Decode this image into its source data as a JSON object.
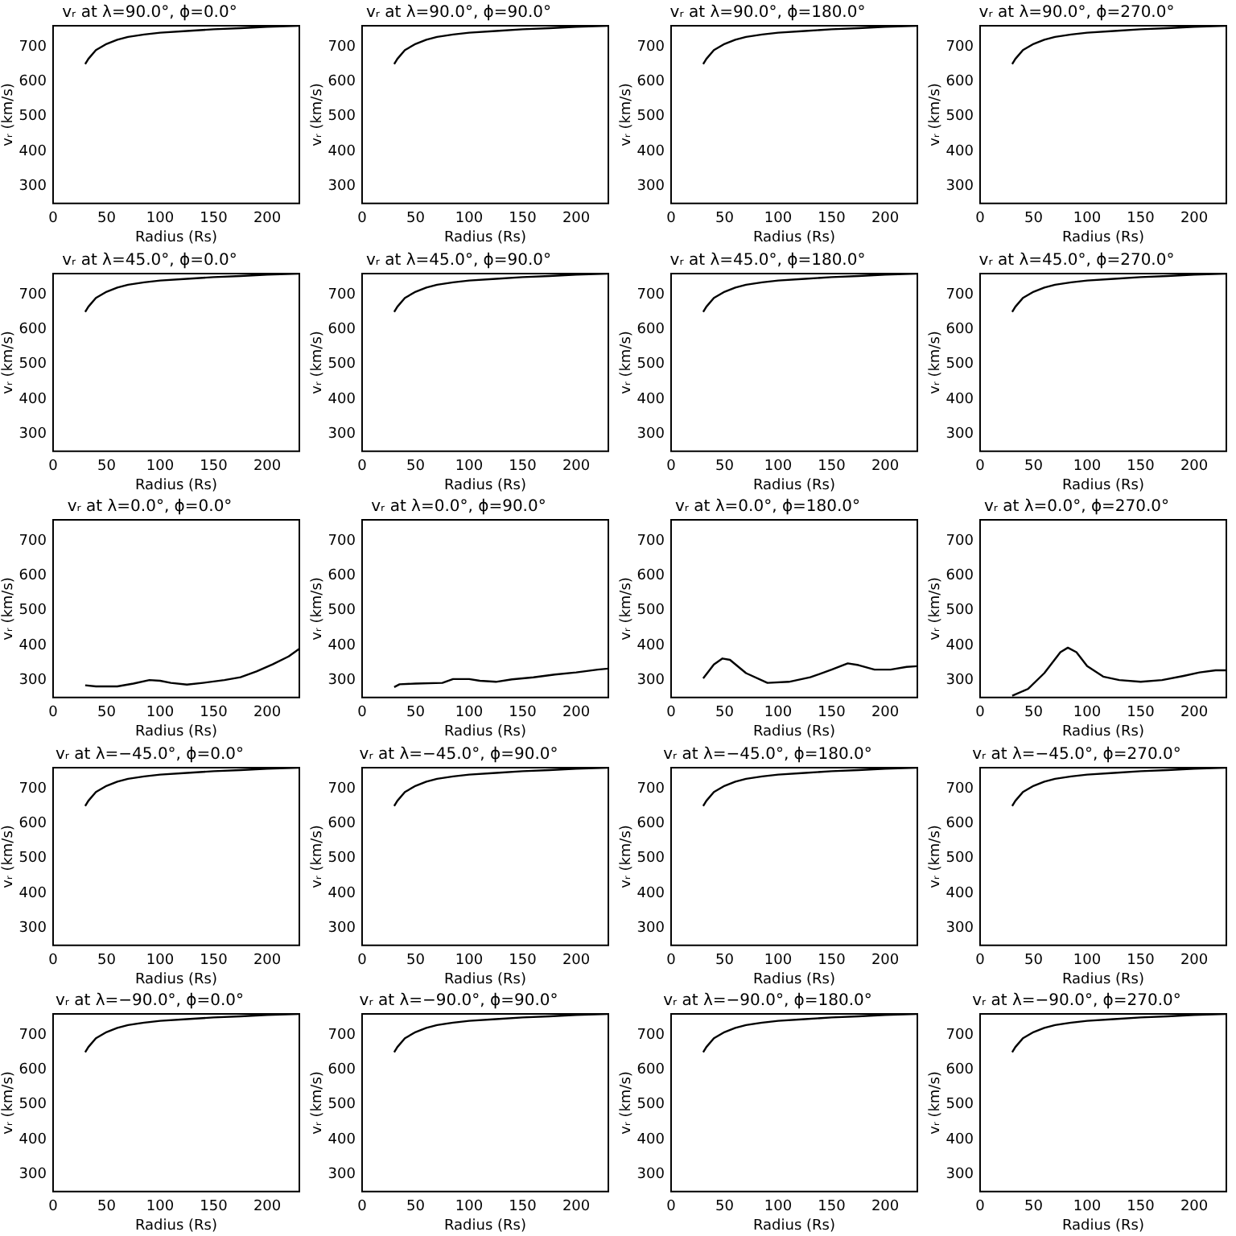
{
  "chart_data": [
    {
      "type": "line",
      "title": "vᵣ at λ=90.0°, ϕ=0.0°",
      "xlabel": "Radius (Rs)",
      "ylabel": "vᵣ (km/s)",
      "color": "#000000",
      "x": [
        30,
        33,
        40,
        50,
        60,
        70,
        85,
        100,
        125,
        150,
        175,
        200,
        230
      ],
      "values": [
        650,
        665,
        690,
        708,
        720,
        728,
        735,
        740,
        745,
        750,
        753,
        757,
        760
      ],
      "xlim": [
        0,
        230
      ],
      "ylim": [
        250,
        760
      ],
      "xticks": [
        0,
        50,
        100,
        150,
        200
      ],
      "yticks": [
        300,
        400,
        500,
        600,
        700
      ]
    },
    {
      "type": "line",
      "title": "vᵣ at λ=90.0°, ϕ=90.0°",
      "xlabel": "Radius (Rs)",
      "ylabel": "vᵣ (km/s)",
      "color": "#000000",
      "x": [
        30,
        33,
        40,
        50,
        60,
        70,
        85,
        100,
        125,
        150,
        175,
        200,
        230
      ],
      "values": [
        650,
        665,
        690,
        708,
        720,
        728,
        735,
        740,
        745,
        750,
        753,
        757,
        760
      ],
      "xlim": [
        0,
        230
      ],
      "ylim": [
        250,
        760
      ],
      "xticks": [
        0,
        50,
        100,
        150,
        200
      ],
      "yticks": [
        300,
        400,
        500,
        600,
        700
      ]
    },
    {
      "type": "line",
      "title": "vᵣ at λ=90.0°, ϕ=180.0°",
      "xlabel": "Radius (Rs)",
      "ylabel": "vᵣ (km/s)",
      "color": "#000000",
      "x": [
        30,
        33,
        40,
        50,
        60,
        70,
        85,
        100,
        125,
        150,
        175,
        200,
        230
      ],
      "values": [
        650,
        665,
        690,
        708,
        720,
        728,
        735,
        740,
        745,
        750,
        753,
        757,
        760
      ],
      "xlim": [
        0,
        230
      ],
      "ylim": [
        250,
        760
      ],
      "xticks": [
        0,
        50,
        100,
        150,
        200
      ],
      "yticks": [
        300,
        400,
        500,
        600,
        700
      ]
    },
    {
      "type": "line",
      "title": "vᵣ at λ=90.0°, ϕ=270.0°",
      "xlabel": "Radius (Rs)",
      "ylabel": "vᵣ (km/s)",
      "color": "#000000",
      "x": [
        30,
        33,
        40,
        50,
        60,
        70,
        85,
        100,
        125,
        150,
        175,
        200,
        230
      ],
      "values": [
        650,
        665,
        690,
        708,
        720,
        728,
        735,
        740,
        745,
        750,
        753,
        757,
        760
      ],
      "xlim": [
        0,
        230
      ],
      "ylim": [
        250,
        760
      ],
      "xticks": [
        0,
        50,
        100,
        150,
        200
      ],
      "yticks": [
        300,
        400,
        500,
        600,
        700
      ]
    },
    {
      "type": "line",
      "title": "vᵣ at λ=45.0°, ϕ=0.0°",
      "xlabel": "Radius (Rs)",
      "ylabel": "vᵣ (km/s)",
      "color": "#000000",
      "x": [
        30,
        33,
        40,
        50,
        60,
        70,
        85,
        100,
        125,
        150,
        175,
        200,
        230
      ],
      "values": [
        650,
        665,
        690,
        708,
        720,
        728,
        735,
        740,
        745,
        750,
        753,
        757,
        760
      ],
      "xlim": [
        0,
        230
      ],
      "ylim": [
        250,
        760
      ],
      "xticks": [
        0,
        50,
        100,
        150,
        200
      ],
      "yticks": [
        300,
        400,
        500,
        600,
        700
      ]
    },
    {
      "type": "line",
      "title": "vᵣ at λ=45.0°, ϕ=90.0°",
      "xlabel": "Radius (Rs)",
      "ylabel": "vᵣ (km/s)",
      "color": "#000000",
      "x": [
        30,
        33,
        40,
        50,
        60,
        70,
        85,
        100,
        125,
        150,
        175,
        200,
        230
      ],
      "values": [
        650,
        665,
        690,
        708,
        720,
        728,
        735,
        740,
        745,
        750,
        753,
        757,
        760
      ],
      "xlim": [
        0,
        230
      ],
      "ylim": [
        250,
        760
      ],
      "xticks": [
        0,
        50,
        100,
        150,
        200
      ],
      "yticks": [
        300,
        400,
        500,
        600,
        700
      ]
    },
    {
      "type": "line",
      "title": "vᵣ at λ=45.0°, ϕ=180.0°",
      "xlabel": "Radius (Rs)",
      "ylabel": "vᵣ (km/s)",
      "color": "#000000",
      "x": [
        30,
        33,
        40,
        50,
        60,
        70,
        85,
        100,
        125,
        150,
        175,
        200,
        230
      ],
      "values": [
        650,
        665,
        690,
        708,
        720,
        728,
        735,
        740,
        745,
        750,
        753,
        757,
        760
      ],
      "xlim": [
        0,
        230
      ],
      "ylim": [
        250,
        760
      ],
      "xticks": [
        0,
        50,
        100,
        150,
        200
      ],
      "yticks": [
        300,
        400,
        500,
        600,
        700
      ]
    },
    {
      "type": "line",
      "title": "vᵣ at λ=45.0°, ϕ=270.0°",
      "xlabel": "Radius (Rs)",
      "ylabel": "vᵣ (km/s)",
      "color": "#000000",
      "x": [
        30,
        33,
        40,
        50,
        60,
        70,
        85,
        100,
        125,
        150,
        175,
        200,
        230
      ],
      "values": [
        650,
        665,
        690,
        708,
        720,
        728,
        735,
        740,
        745,
        750,
        753,
        757,
        760
      ],
      "xlim": [
        0,
        230
      ],
      "ylim": [
        250,
        760
      ],
      "xticks": [
        0,
        50,
        100,
        150,
        200
      ],
      "yticks": [
        300,
        400,
        500,
        600,
        700
      ]
    },
    {
      "type": "line",
      "title": "vᵣ at λ=0.0°, ϕ=0.0°",
      "xlabel": "Radius (Rs)",
      "ylabel": "vᵣ (km/s)",
      "color": "#000000",
      "x": [
        30,
        40,
        60,
        75,
        90,
        100,
        110,
        125,
        140,
        160,
        175,
        190,
        205,
        220,
        230
      ],
      "values": [
        285,
        282,
        282,
        290,
        300,
        298,
        292,
        287,
        292,
        300,
        308,
        325,
        345,
        368,
        390
      ],
      "xlim": [
        0,
        230
      ],
      "ylim": [
        250,
        760
      ],
      "xticks": [
        0,
        50,
        100,
        150,
        200
      ],
      "yticks": [
        300,
        400,
        500,
        600,
        700
      ]
    },
    {
      "type": "line",
      "title": "vᵣ at λ=0.0°, ϕ=90.0°",
      "xlabel": "Radius (Rs)",
      "ylabel": "vᵣ (km/s)",
      "color": "#000000",
      "x": [
        30,
        35,
        50,
        75,
        85,
        100,
        110,
        125,
        140,
        160,
        180,
        200,
        220,
        230
      ],
      "values": [
        280,
        288,
        290,
        292,
        303,
        303,
        298,
        295,
        302,
        308,
        316,
        322,
        330,
        333
      ],
      "xlim": [
        0,
        230
      ],
      "ylim": [
        250,
        760
      ],
      "xticks": [
        0,
        50,
        100,
        150,
        200
      ],
      "yticks": [
        300,
        400,
        500,
        600,
        700
      ]
    },
    {
      "type": "line",
      "title": "vᵣ at λ=0.0°, ϕ=180.0°",
      "xlabel": "Radius (Rs)",
      "ylabel": "vᵣ (km/s)",
      "color": "#000000",
      "x": [
        30,
        40,
        48,
        55,
        70,
        90,
        110,
        130,
        150,
        165,
        175,
        190,
        205,
        220,
        230
      ],
      "values": [
        305,
        345,
        362,
        358,
        320,
        292,
        295,
        308,
        330,
        348,
        343,
        330,
        330,
        338,
        340
      ],
      "xlim": [
        0,
        230
      ],
      "ylim": [
        250,
        760
      ],
      "xticks": [
        0,
        50,
        100,
        150,
        200
      ],
      "yticks": [
        300,
        400,
        500,
        600,
        700
      ]
    },
    {
      "type": "line",
      "title": "vᵣ at λ=0.0°, ϕ=270.0°",
      "xlabel": "Radius (Rs)",
      "ylabel": "vᵣ (km/s)",
      "color": "#000000",
      "x": [
        30,
        45,
        60,
        75,
        82,
        90,
        100,
        115,
        130,
        150,
        170,
        190,
        205,
        220,
        230
      ],
      "values": [
        255,
        275,
        320,
        380,
        393,
        380,
        340,
        310,
        300,
        295,
        300,
        312,
        322,
        328,
        328
      ],
      "xlim": [
        0,
        230
      ],
      "ylim": [
        250,
        760
      ],
      "xticks": [
        0,
        50,
        100,
        150,
        200
      ],
      "yticks": [
        300,
        400,
        500,
        600,
        700
      ]
    },
    {
      "type": "line",
      "title": "vᵣ at λ=−45.0°, ϕ=0.0°",
      "xlabel": "Radius (Rs)",
      "ylabel": "vᵣ (km/s)",
      "color": "#000000",
      "x": [
        30,
        33,
        40,
        50,
        60,
        70,
        85,
        100,
        125,
        150,
        175,
        200,
        230
      ],
      "values": [
        650,
        665,
        690,
        708,
        720,
        728,
        735,
        740,
        745,
        750,
        753,
        757,
        760
      ],
      "xlim": [
        0,
        230
      ],
      "ylim": [
        250,
        760
      ],
      "xticks": [
        0,
        50,
        100,
        150,
        200
      ],
      "yticks": [
        300,
        400,
        500,
        600,
        700
      ]
    },
    {
      "type": "line",
      "title": "vᵣ at λ=−45.0°, ϕ=90.0°",
      "xlabel": "Radius (Rs)",
      "ylabel": "vᵣ (km/s)",
      "color": "#000000",
      "x": [
        30,
        33,
        40,
        50,
        60,
        70,
        85,
        100,
        125,
        150,
        175,
        200,
        230
      ],
      "values": [
        650,
        665,
        690,
        708,
        720,
        728,
        735,
        740,
        745,
        750,
        753,
        757,
        760
      ],
      "xlim": [
        0,
        230
      ],
      "ylim": [
        250,
        760
      ],
      "xticks": [
        0,
        50,
        100,
        150,
        200
      ],
      "yticks": [
        300,
        400,
        500,
        600,
        700
      ]
    },
    {
      "type": "line",
      "title": "vᵣ at λ=−45.0°, ϕ=180.0°",
      "xlabel": "Radius (Rs)",
      "ylabel": "vᵣ (km/s)",
      "color": "#000000",
      "x": [
        30,
        33,
        40,
        50,
        60,
        70,
        85,
        100,
        125,
        150,
        175,
        200,
        230
      ],
      "values": [
        650,
        665,
        690,
        708,
        720,
        728,
        735,
        740,
        745,
        750,
        753,
        757,
        760
      ],
      "xlim": [
        0,
        230
      ],
      "ylim": [
        250,
        760
      ],
      "xticks": [
        0,
        50,
        100,
        150,
        200
      ],
      "yticks": [
        300,
        400,
        500,
        600,
        700
      ]
    },
    {
      "type": "line",
      "title": "vᵣ at λ=−45.0°, ϕ=270.0°",
      "xlabel": "Radius (Rs)",
      "ylabel": "vᵣ (km/s)",
      "color": "#000000",
      "x": [
        30,
        33,
        40,
        50,
        60,
        70,
        85,
        100,
        125,
        150,
        175,
        200,
        230
      ],
      "values": [
        650,
        665,
        690,
        708,
        720,
        728,
        735,
        740,
        745,
        750,
        753,
        757,
        760
      ],
      "xlim": [
        0,
        230
      ],
      "ylim": [
        250,
        760
      ],
      "xticks": [
        0,
        50,
        100,
        150,
        200
      ],
      "yticks": [
        300,
        400,
        500,
        600,
        700
      ]
    },
    {
      "type": "line",
      "title": "vᵣ at λ=−90.0°, ϕ=0.0°",
      "xlabel": "Radius (Rs)",
      "ylabel": "vᵣ (km/s)",
      "color": "#000000",
      "x": [
        30,
        33,
        40,
        50,
        60,
        70,
        85,
        100,
        125,
        150,
        175,
        200,
        230
      ],
      "values": [
        650,
        665,
        690,
        708,
        720,
        728,
        735,
        740,
        745,
        750,
        753,
        757,
        760
      ],
      "xlim": [
        0,
        230
      ],
      "ylim": [
        250,
        760
      ],
      "xticks": [
        0,
        50,
        100,
        150,
        200
      ],
      "yticks": [
        300,
        400,
        500,
        600,
        700
      ]
    },
    {
      "type": "line",
      "title": "vᵣ at λ=−90.0°, ϕ=90.0°",
      "xlabel": "Radius (Rs)",
      "ylabel": "vᵣ (km/s)",
      "color": "#000000",
      "x": [
        30,
        33,
        40,
        50,
        60,
        70,
        85,
        100,
        125,
        150,
        175,
        200,
        230
      ],
      "values": [
        650,
        665,
        690,
        708,
        720,
        728,
        735,
        740,
        745,
        750,
        753,
        757,
        760
      ],
      "xlim": [
        0,
        230
      ],
      "ylim": [
        250,
        760
      ],
      "xticks": [
        0,
        50,
        100,
        150,
        200
      ],
      "yticks": [
        300,
        400,
        500,
        600,
        700
      ]
    },
    {
      "type": "line",
      "title": "vᵣ at λ=−90.0°, ϕ=180.0°",
      "xlabel": "Radius (Rs)",
      "ylabel": "vᵣ (km/s)",
      "color": "#000000",
      "x": [
        30,
        33,
        40,
        50,
        60,
        70,
        85,
        100,
        125,
        150,
        175,
        200,
        230
      ],
      "values": [
        650,
        665,
        690,
        708,
        720,
        728,
        735,
        740,
        745,
        750,
        753,
        757,
        760
      ],
      "xlim": [
        0,
        230
      ],
      "ylim": [
        250,
        760
      ],
      "xticks": [
        0,
        50,
        100,
        150,
        200
      ],
      "yticks": [
        300,
        400,
        500,
        600,
        700
      ]
    },
    {
      "type": "line",
      "title": "vᵣ at λ=−90.0°, ϕ=270.0°",
      "xlabel": "Radius (Rs)",
      "ylabel": "vᵣ (km/s)",
      "color": "#000000",
      "x": [
        30,
        33,
        40,
        50,
        60,
        70,
        85,
        100,
        125,
        150,
        175,
        200,
        230
      ],
      "values": [
        650,
        665,
        690,
        708,
        720,
        728,
        735,
        740,
        745,
        750,
        753,
        757,
        760
      ],
      "xlim": [
        0,
        230
      ],
      "ylim": [
        250,
        760
      ],
      "xticks": [
        0,
        50,
        100,
        150,
        200
      ],
      "yticks": [
        300,
        400,
        500,
        600,
        700
      ]
    }
  ]
}
